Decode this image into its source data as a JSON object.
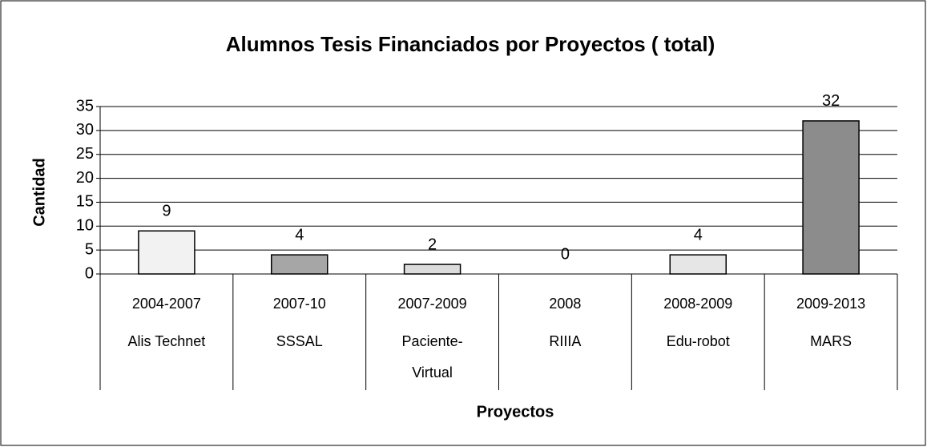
{
  "chart_data": {
    "type": "bar",
    "title": "Alumnos Tesis Financiados por Proyectos ( total)",
    "y_label": "Cantidad",
    "x_label": "Proyectos",
    "categories": [
      [
        "2004-2007",
        "Alis Technet"
      ],
      [
        "2007-10",
        "SSSAL"
      ],
      [
        "2007-2009",
        "Paciente-Virtual"
      ],
      [
        "2008",
        "RIIIA"
      ],
      [
        "2008-2009",
        "Edu-robot"
      ],
      [
        "2009-2013",
        "MARS"
      ]
    ],
    "values": [
      9,
      4,
      2,
      0,
      4,
      32
    ],
    "colors": [
      "#f2f2f2",
      "#a6a6a6",
      "#dcdcdc",
      "#ffffff",
      "#e6e6e6",
      "#8c8c8c"
    ],
    "ylim": [
      0,
      35
    ],
    "yticks": [
      0,
      5,
      10,
      15,
      20,
      25,
      30,
      35
    ],
    "grid": true
  }
}
